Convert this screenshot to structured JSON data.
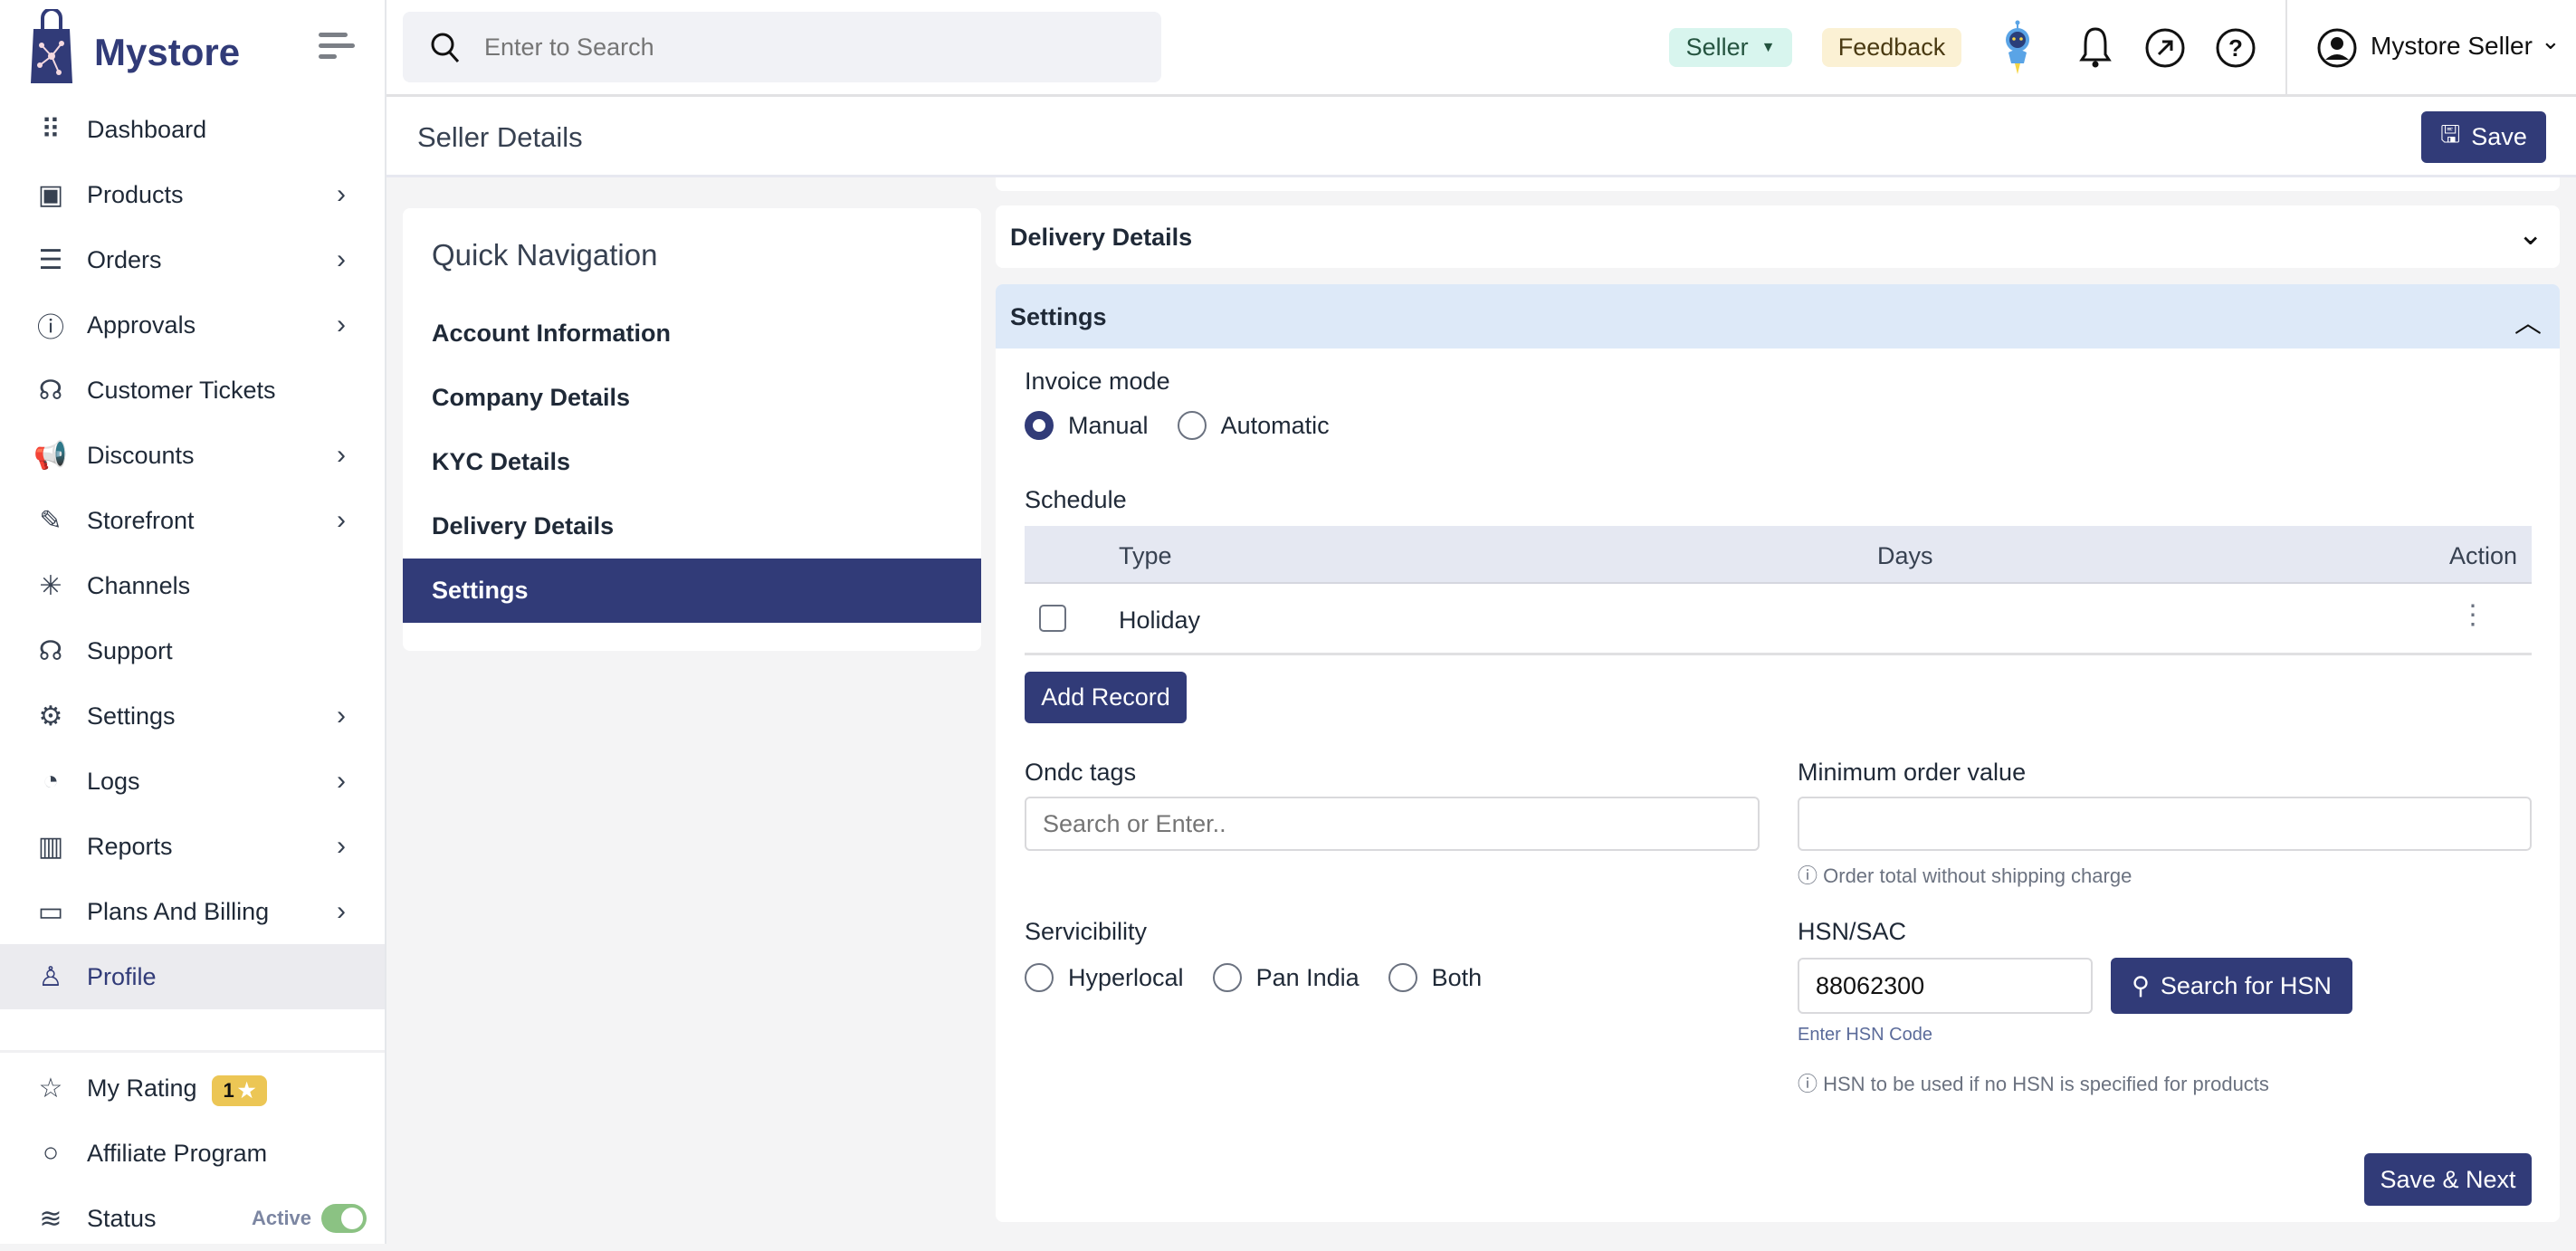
{
  "brand": {
    "name": "Mystore"
  },
  "header": {
    "search_placeholder": "Enter to Search",
    "role": "Seller",
    "feedback": "Feedback",
    "user_name": "Mystore Seller"
  },
  "page": {
    "title": "Seller Details",
    "save_label": "Save"
  },
  "sidebar": {
    "items": [
      {
        "label": "Dashboard",
        "icon": "grid-icon",
        "glyph": "⠿",
        "chevron": false
      },
      {
        "label": "Products",
        "icon": "box-icon",
        "glyph": "▣",
        "chevron": true
      },
      {
        "label": "Orders",
        "icon": "clipboard-icon",
        "glyph": "☰",
        "chevron": true
      },
      {
        "label": "Approvals",
        "icon": "info-square-icon",
        "glyph": "ⓘ",
        "chevron": true
      },
      {
        "label": "Customer Tickets",
        "icon": "headset-icon",
        "glyph": "☊",
        "chevron": false
      },
      {
        "label": "Discounts",
        "icon": "megaphone-icon",
        "glyph": "📢",
        "chevron": true
      },
      {
        "label": "Storefront",
        "icon": "brush-icon",
        "glyph": "✎",
        "chevron": true
      },
      {
        "label": "Channels",
        "icon": "hub-icon",
        "glyph": "✳",
        "chevron": false
      },
      {
        "label": "Support",
        "icon": "headphones-icon",
        "glyph": "☊",
        "chevron": false
      },
      {
        "label": "Settings",
        "icon": "gear-icon",
        "glyph": "⚙",
        "chevron": true
      },
      {
        "label": "Logs",
        "icon": "timer-icon",
        "glyph": "◔",
        "chevron": true
      },
      {
        "label": "Reports",
        "icon": "bar-chart-icon",
        "glyph": "▥",
        "chevron": true
      },
      {
        "label": "Plans And Billing",
        "icon": "credit-card-icon",
        "glyph": "▭",
        "chevron": true
      },
      {
        "label": "Profile",
        "icon": "user-icon",
        "glyph": "♙",
        "chevron": false,
        "active": true
      }
    ],
    "footer": [
      {
        "label": "My Rating",
        "icon": "star-icon",
        "glyph": "☆"
      },
      {
        "label": "Affiliate Program",
        "icon": "circle-icon",
        "glyph": "○"
      },
      {
        "label": "Status",
        "icon": "database-icon",
        "glyph": "≋"
      }
    ],
    "rating": "1",
    "status_text": "Active",
    "status_on": true
  },
  "quick_nav": {
    "title": "Quick Navigation",
    "items": [
      "Account Information",
      "Company Details",
      "KYC Details",
      "Delivery Details",
      "Settings"
    ],
    "active": "Settings"
  },
  "sections": {
    "delivery": "Delivery Details",
    "settings": "Settings"
  },
  "settings": {
    "invoice_label": "Invoice mode",
    "invoice_options": [
      "Manual",
      "Automatic"
    ],
    "invoice_selected": "Manual",
    "schedule_label": "Schedule",
    "table": {
      "headers": [
        "Type",
        "Days",
        "Action"
      ],
      "rows": [
        {
          "type": "Holiday",
          "days": ""
        }
      ]
    },
    "add_record": "Add Record",
    "ondc_label": "Ondc tags",
    "ondc_placeholder": "Search or Enter..",
    "min_order_label": "Minimum order value",
    "min_order_value": "",
    "min_order_hint": "Order total without shipping charge",
    "serv_label": "Servicibility",
    "serv_options": [
      "Hyperlocal",
      "Pan India",
      "Both"
    ],
    "hsn_label": "HSN/SAC",
    "hsn_value": "88062300",
    "hsn_search": "Search for HSN",
    "hsn_sub": "Enter HSN Code",
    "hsn_hint": "HSN to be used if no HSN is specified for products",
    "save_next": "Save & Next"
  },
  "colors": {
    "primary": "#313b78",
    "seller_badge": "#d8f5ee",
    "feedback_badge": "#fbf1d4",
    "settings_header": "#dde9f8",
    "toggle": "#8bc283",
    "rating": "#ecc655"
  }
}
